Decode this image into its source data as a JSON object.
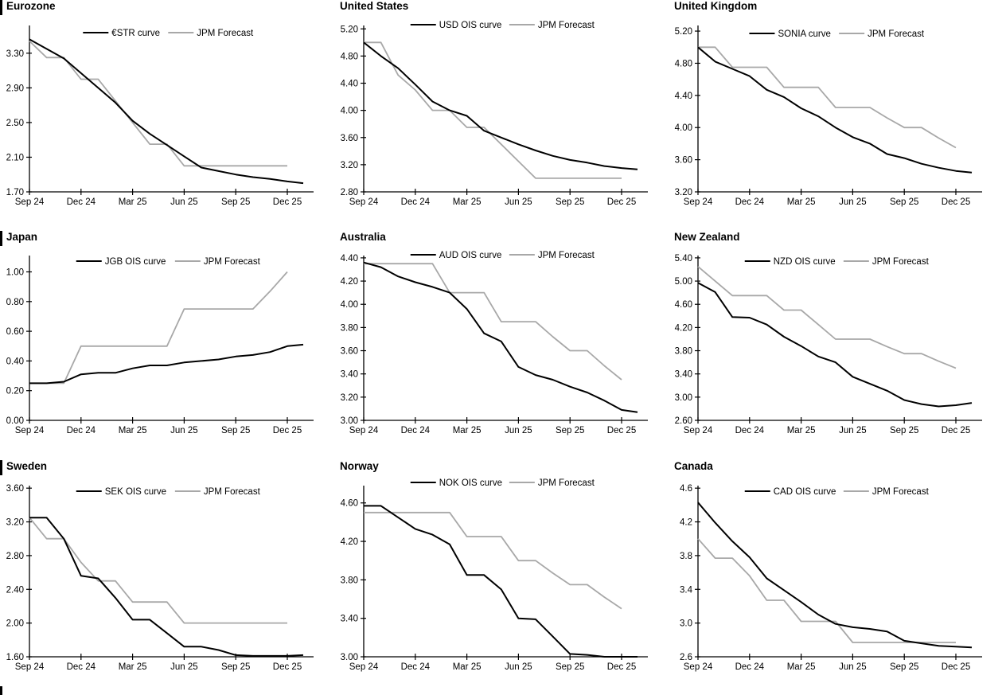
{
  "colors": {
    "ois": "#000000",
    "forecast": "#a8a8a8",
    "axis": "#000000"
  },
  "months": [
    "Sep 24",
    "Oct 24",
    "Nov 24",
    "Dec 24",
    "Jan 25",
    "Feb 25",
    "Mar 25",
    "Apr 25",
    "May 25",
    "Jun 25",
    "Jul 25",
    "Aug 25",
    "Sep 25",
    "Oct 25",
    "Nov 25",
    "Dec 25"
  ],
  "x_tick_labels": [
    "Sep 24",
    "Dec 24",
    "Mar 25",
    "Jun 25",
    "Sep 25",
    "Dec 25"
  ],
  "x_tick_indices": [
    0,
    3,
    6,
    9,
    12,
    15
  ],
  "chart_data": [
    {
      "type": "line",
      "title": "Eurozone",
      "left_bar": true,
      "legend_position": "top-center",
      "legend_y": 41,
      "ylim": [
        1.7,
        3.62
      ],
      "yticks": [
        1.7,
        2.1,
        2.5,
        2.9,
        3.3
      ],
      "ytick_labels": [
        "1.70",
        "2.10",
        "2.50",
        "2.90",
        "3.30"
      ],
      "series": [
        {
          "name": "€STR curve",
          "color": "#000000",
          "values": [
            3.46,
            3.35,
            3.24,
            3.07,
            2.9,
            2.73,
            2.52,
            2.37,
            2.24,
            2.11,
            1.98,
            1.94,
            1.9,
            1.87,
            1.85,
            1.82
          ],
          "tail": 1.8
        },
        {
          "name": "JPM Forecast",
          "color": "#a8a8a8",
          "values": [
            3.44,
            3.25,
            3.25,
            3.0,
            3.0,
            2.75,
            2.5,
            2.25,
            2.25,
            2.0,
            2.0,
            2.0,
            2.0,
            2.0,
            2.0,
            2.0
          ]
        }
      ]
    },
    {
      "type": "line",
      "title": "United States",
      "left_bar": false,
      "legend_position": "top-center",
      "legend_y": 31,
      "ylim": [
        2.8,
        5.25
      ],
      "yticks": [
        2.8,
        3.2,
        3.6,
        4.0,
        4.4,
        4.8,
        5.2
      ],
      "ytick_labels": [
        "2.80",
        "3.20",
        "3.60",
        "4.00",
        "4.40",
        "4.80",
        "5.20"
      ],
      "series": [
        {
          "name": "USD OIS curve",
          "color": "#000000",
          "values": [
            5.0,
            4.8,
            4.62,
            4.38,
            4.13,
            4.0,
            3.92,
            3.7,
            3.6,
            3.5,
            3.41,
            3.33,
            3.27,
            3.23,
            3.18,
            3.15
          ],
          "tail": 3.13
        },
        {
          "name": "JPM Forecast",
          "color": "#a8a8a8",
          "values": [
            5.0,
            5.0,
            4.52,
            4.3,
            4.0,
            4.0,
            3.75,
            3.75,
            3.5,
            3.25,
            3.0,
            3.0,
            3.0,
            3.0,
            3.0,
            3.0
          ]
        }
      ]
    },
    {
      "type": "line",
      "title": "United Kingdom",
      "left_bar": false,
      "legend_position": "top-center",
      "legend_y": 42,
      "ylim": [
        3.2,
        5.27
      ],
      "yticks": [
        3.2,
        3.6,
        4.0,
        4.4,
        4.8,
        5.2
      ],
      "ytick_labels": [
        "3.20",
        "3.60",
        "4.00",
        "4.40",
        "4.80",
        "5.20"
      ],
      "series": [
        {
          "name": "SONIA curve",
          "color": "#000000",
          "values": [
            5.0,
            4.82,
            4.73,
            4.64,
            4.47,
            4.38,
            4.24,
            4.14,
            4.0,
            3.88,
            3.8,
            3.67,
            3.62,
            3.55,
            3.5,
            3.46
          ],
          "tail": 3.44
        },
        {
          "name": "JPM Forecast",
          "color": "#a8a8a8",
          "values": [
            5.0,
            5.0,
            4.75,
            4.75,
            4.75,
            4.5,
            4.5,
            4.5,
            4.25,
            4.25,
            4.25,
            4.12,
            4.0,
            4.0,
            3.87,
            3.75
          ]
        }
      ]
    },
    {
      "type": "line",
      "title": "Japan",
      "left_bar": true,
      "legend_position": "top-center",
      "legend_y": 43,
      "ylim": [
        0.0,
        1.11
      ],
      "yticks": [
        0.0,
        0.2,
        0.4,
        0.6,
        0.8,
        1.0
      ],
      "ytick_labels": [
        "0.00",
        "0.20",
        "0.40",
        "0.60",
        "0.80",
        "1.00"
      ],
      "series": [
        {
          "name": "JGB OIS curve",
          "color": "#000000",
          "values": [
            0.25,
            0.25,
            0.26,
            0.31,
            0.32,
            0.32,
            0.35,
            0.37,
            0.37,
            0.39,
            0.4,
            0.41,
            0.43,
            0.44,
            0.46,
            0.5
          ],
          "tail": 0.51
        },
        {
          "name": "JPM Forecast",
          "color": "#a8a8a8",
          "values": [
            0.25,
            0.25,
            0.25,
            0.5,
            0.5,
            0.5,
            0.5,
            0.5,
            0.5,
            0.75,
            0.75,
            0.75,
            0.75,
            0.75,
            0.87,
            1.0
          ]
        }
      ]
    },
    {
      "type": "line",
      "title": "Australia",
      "left_bar": false,
      "legend_position": "top-center",
      "legend_y": 35,
      "ylim": [
        3.0,
        4.42
      ],
      "yticks": [
        3.0,
        3.2,
        3.4,
        3.6,
        3.8,
        4.0,
        4.2,
        4.4
      ],
      "ytick_labels": [
        "3.00",
        "3.20",
        "3.40",
        "3.60",
        "3.80",
        "4.00",
        "4.20",
        "4.40"
      ],
      "series": [
        {
          "name": "AUD OIS curve",
          "color": "#000000",
          "values": [
            4.36,
            4.32,
            4.24,
            4.19,
            4.15,
            4.1,
            3.96,
            3.75,
            3.68,
            3.46,
            3.39,
            3.35,
            3.29,
            3.24,
            3.17,
            3.09
          ],
          "tail": 3.07
        },
        {
          "name": "JPM Forecast",
          "color": "#a8a8a8",
          "values": [
            4.35,
            4.35,
            4.35,
            4.35,
            4.35,
            4.1,
            4.1,
            4.1,
            3.85,
            3.85,
            3.85,
            3.72,
            3.6,
            3.6,
            3.47,
            3.35
          ]
        }
      ]
    },
    {
      "type": "line",
      "title": "New Zealand",
      "left_bar": false,
      "legend_position": "top-center",
      "legend_y": 43,
      "ylim": [
        2.6,
        5.44
      ],
      "yticks": [
        2.6,
        3.0,
        3.4,
        3.8,
        4.2,
        4.6,
        5.0,
        5.4
      ],
      "ytick_labels": [
        "2.60",
        "3.00",
        "3.40",
        "3.80",
        "4.20",
        "4.60",
        "5.00",
        "5.40"
      ],
      "series": [
        {
          "name": "NZD OIS curve",
          "color": "#000000",
          "values": [
            4.97,
            4.81,
            4.38,
            4.37,
            4.25,
            4.04,
            3.88,
            3.7,
            3.6,
            3.35,
            3.23,
            3.11,
            2.95,
            2.88,
            2.84,
            2.86
          ],
          "tail": 2.9
        },
        {
          "name": "JPM Forecast",
          "color": "#a8a8a8",
          "values": [
            5.25,
            5.0,
            4.75,
            4.75,
            4.75,
            4.5,
            4.5,
            4.25,
            4.0,
            4.0,
            4.0,
            3.87,
            3.75,
            3.75,
            3.62,
            3.5
          ]
        }
      ]
    },
    {
      "type": "line",
      "title": "Sweden",
      "left_bar": true,
      "legend_position": "top-center",
      "legend_y": 47,
      "ylim": [
        1.6,
        3.63
      ],
      "yticks": [
        1.6,
        2.0,
        2.4,
        2.8,
        3.2,
        3.6
      ],
      "ytick_labels": [
        "1.60",
        "2.00",
        "2.40",
        "2.80",
        "3.20",
        "3.60"
      ],
      "series": [
        {
          "name": "SEK OIS curve",
          "color": "#000000",
          "values": [
            3.25,
            3.25,
            3.0,
            2.56,
            2.53,
            2.3,
            2.04,
            2.04,
            1.88,
            1.72,
            1.72,
            1.68,
            1.62,
            1.61,
            1.61,
            1.61
          ],
          "tail": 1.62
        },
        {
          "name": "JPM Forecast",
          "color": "#a8a8a8",
          "values": [
            3.25,
            3.0,
            3.0,
            2.72,
            2.5,
            2.5,
            2.25,
            2.25,
            2.25,
            2.0,
            2.0,
            2.0,
            2.0,
            2.0,
            2.0,
            2.0
          ]
        }
      ]
    },
    {
      "type": "line",
      "title": "Norway",
      "left_bar": false,
      "legend_position": "top-center",
      "legend_y": 36,
      "ylim": [
        3.0,
        4.78
      ],
      "yticks": [
        3.0,
        3.4,
        3.8,
        4.2,
        4.6
      ],
      "ytick_labels": [
        "3.00",
        "3.40",
        "3.80",
        "4.20",
        "4.60"
      ],
      "series": [
        {
          "name": "NOK OIS curve",
          "color": "#000000",
          "values": [
            4.57,
            4.57,
            4.45,
            4.33,
            4.27,
            4.17,
            3.85,
            3.85,
            3.7,
            3.4,
            3.39,
            3.21,
            3.03,
            3.02,
            3.0,
            3.0
          ],
          "tail": 3.0
        },
        {
          "name": "JPM Forecast",
          "color": "#a8a8a8",
          "values": [
            4.5,
            4.5,
            4.5,
            4.5,
            4.5,
            4.5,
            4.25,
            4.25,
            4.25,
            4.0,
            4.0,
            3.87,
            3.75,
            3.75,
            3.62,
            3.5
          ]
        }
      ]
    },
    {
      "type": "line",
      "title": "Canada",
      "left_bar": false,
      "legend_position": "top-center",
      "legend_y": 47,
      "ylim": [
        2.6,
        4.63
      ],
      "yticks": [
        2.6,
        3.0,
        3.4,
        3.8,
        4.2,
        4.6
      ],
      "ytick_labels": [
        "2.6",
        "3.0",
        "3.4",
        "3.8",
        "4.2",
        "4.6"
      ],
      "series": [
        {
          "name": "CAD OIS curve",
          "color": "#000000",
          "values": [
            4.43,
            4.19,
            3.97,
            3.78,
            3.53,
            3.39,
            3.25,
            3.1,
            2.99,
            2.95,
            2.93,
            2.9,
            2.79,
            2.76,
            2.73,
            2.72
          ],
          "tail": 2.71
        },
        {
          "name": "JPM Forecast",
          "color": "#a8a8a8",
          "values": [
            4.0,
            3.77,
            3.77,
            3.56,
            3.27,
            3.27,
            3.02,
            3.02,
            3.02,
            2.77,
            2.77,
            2.77,
            2.77,
            2.77,
            2.77,
            2.77
          ]
        }
      ]
    }
  ]
}
